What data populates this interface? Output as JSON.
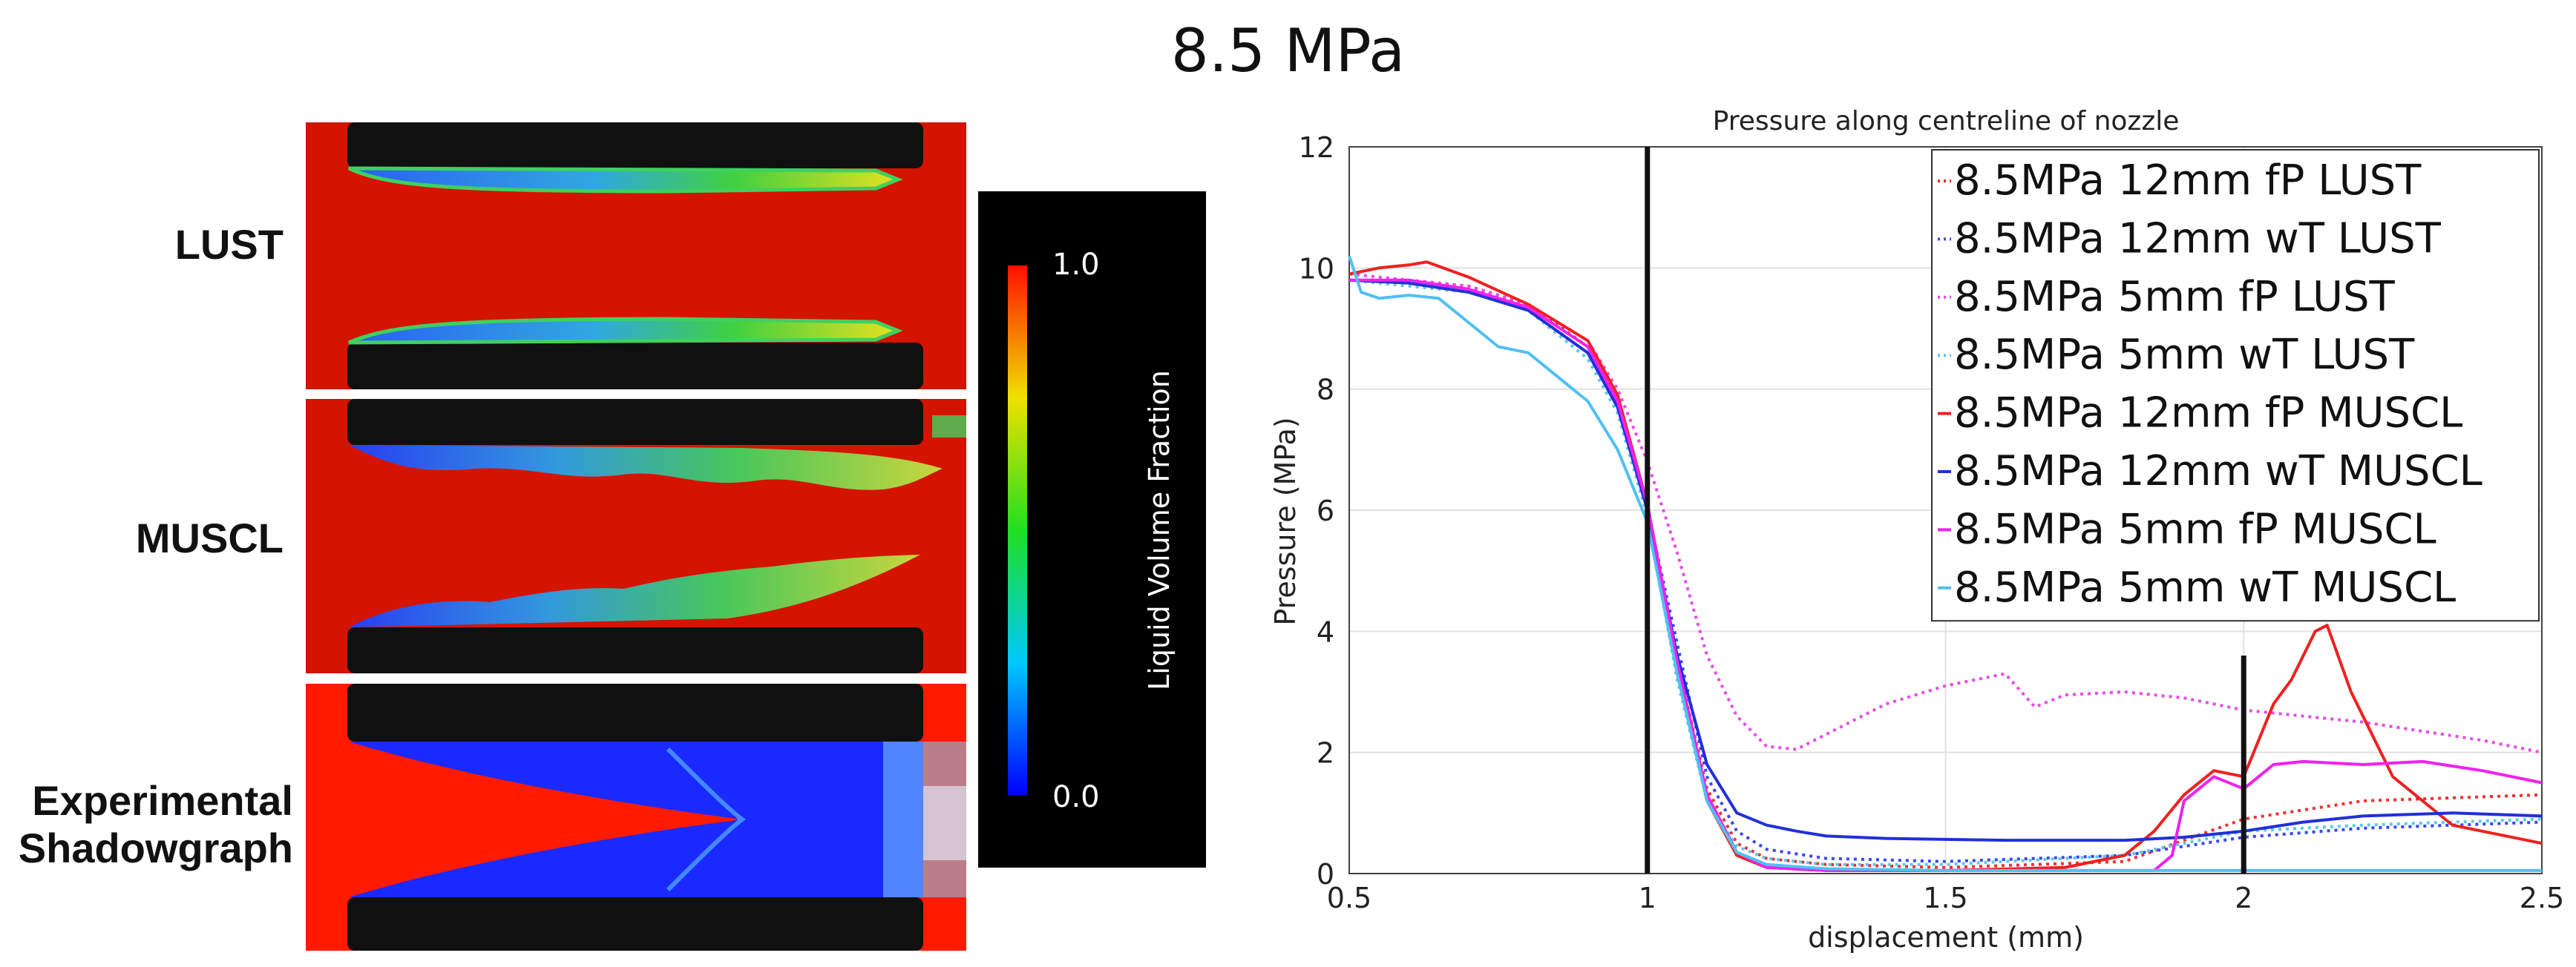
{
  "figure_title": "8.5 MPa",
  "panels": [
    {
      "label": "LUST"
    },
    {
      "label": "MUSCL"
    },
    {
      "label": "Experimental Shadowgraph",
      "lines": [
        "Experimental",
        "Shadowgraph"
      ]
    }
  ],
  "colorbar": {
    "label": "Liquid Volume Fraction",
    "max_label": "1.0",
    "min_label": "0.0"
  },
  "colors": {
    "red_field": "#d41400",
    "blue_field": "#1a2aff",
    "background": "#ffffff"
  },
  "chart_data": {
    "type": "line",
    "title": "Pressure along centreline of nozzle",
    "xlabel": "displacement (mm)",
    "ylabel": "Pressure (MPa)",
    "xlim": [
      0.5,
      2.5
    ],
    "ylim": [
      0,
      12
    ],
    "xticks": [
      "0.5",
      "1",
      "1.5",
      "2",
      "2.5"
    ],
    "yticks": [
      "0",
      "2",
      "4",
      "6",
      "8",
      "10",
      "12"
    ],
    "vlines": [
      1.0,
      2.0
    ],
    "series": [
      {
        "name": "8.5MPa 12mm fP LUST",
        "color": "#f03030",
        "dash": true,
        "x": [
          0.5,
          0.6,
          0.7,
          0.8,
          0.9,
          0.95,
          1.0,
          1.05,
          1.1,
          1.15,
          1.2,
          1.3,
          1.5,
          1.8,
          2.0,
          2.2,
          2.5
        ],
        "y": [
          9.8,
          9.8,
          9.7,
          9.4,
          8.7,
          7.8,
          6.0,
          3.5,
          1.4,
          0.5,
          0.25,
          0.15,
          0.1,
          0.2,
          0.9,
          1.2,
          1.3
        ]
      },
      {
        "name": "8.5MPa 12mm wT LUST",
        "color": "#3a48f0",
        "dash": true,
        "x": [
          0.5,
          0.6,
          0.7,
          0.8,
          0.9,
          0.95,
          1.0,
          1.05,
          1.1,
          1.15,
          1.2,
          1.3,
          1.5,
          1.8,
          2.0,
          2.2,
          2.5
        ],
        "y": [
          9.8,
          9.75,
          9.6,
          9.3,
          8.6,
          7.7,
          6.0,
          3.8,
          1.6,
          0.7,
          0.4,
          0.25,
          0.2,
          0.3,
          0.6,
          0.75,
          0.85
        ]
      },
      {
        "name": "8.5MPa 5mm fP LUST",
        "color": "#e84ce8",
        "dash": true,
        "x": [
          0.5,
          0.6,
          0.7,
          0.8,
          0.9,
          0.95,
          1.0,
          1.05,
          1.1,
          1.15,
          1.2,
          1.25,
          1.3,
          1.4,
          1.5,
          1.6,
          1.65,
          1.7,
          1.8,
          1.9,
          2.0,
          2.2,
          2.4,
          2.5
        ],
        "y": [
          9.9,
          9.8,
          9.7,
          9.4,
          8.8,
          8.0,
          6.8,
          5.3,
          3.6,
          2.6,
          2.1,
          2.05,
          2.3,
          2.8,
          3.1,
          3.3,
          2.75,
          2.95,
          3.0,
          2.9,
          2.7,
          2.5,
          2.2,
          2.0
        ]
      },
      {
        "name": "8.5MPa 5mm wT LUST",
        "color": "#5ac8f0",
        "dash": true,
        "x": [
          0.5,
          0.6,
          0.7,
          0.8,
          0.9,
          0.95,
          1.0,
          1.05,
          1.1,
          1.15,
          1.2,
          1.3,
          1.5,
          1.8,
          2.0,
          2.2,
          2.5
        ],
        "y": [
          9.8,
          9.7,
          9.6,
          9.3,
          8.5,
          7.6,
          5.9,
          3.2,
          1.2,
          0.45,
          0.25,
          0.15,
          0.15,
          0.3,
          0.7,
          0.8,
          0.9
        ]
      },
      {
        "name": "8.5MPa 12mm fP MUSCL",
        "color": "#f02020",
        "dash": false,
        "x": [
          0.5,
          0.55,
          0.6,
          0.63,
          0.7,
          0.8,
          0.9,
          0.95,
          1.0,
          1.05,
          1.1,
          1.15,
          1.2,
          1.3,
          1.5,
          1.7,
          1.8,
          1.85,
          1.9,
          1.95,
          2.0,
          2.05,
          2.08,
          2.12,
          2.14,
          2.18,
          2.25,
          2.35,
          2.5
        ],
        "y": [
          9.9,
          10.0,
          10.05,
          10.1,
          9.85,
          9.4,
          8.8,
          7.9,
          6.1,
          3.4,
          1.2,
          0.3,
          0.1,
          0.05,
          0.05,
          0.1,
          0.3,
          0.7,
          1.3,
          1.7,
          1.6,
          2.8,
          3.2,
          4.0,
          4.1,
          3.0,
          1.6,
          0.8,
          0.5
        ]
      },
      {
        "name": "8.5MPa 12mm wT MUSCL",
        "color": "#2030d8",
        "dash": false,
        "x": [
          0.5,
          0.6,
          0.7,
          0.8,
          0.9,
          0.95,
          1.0,
          1.05,
          1.1,
          1.15,
          1.2,
          1.25,
          1.3,
          1.4,
          1.6,
          1.8,
          1.9,
          2.0,
          2.1,
          2.2,
          2.35,
          2.5
        ],
        "y": [
          9.8,
          9.75,
          9.6,
          9.3,
          8.6,
          7.7,
          6.0,
          3.6,
          1.8,
          1.0,
          0.8,
          0.7,
          0.62,
          0.58,
          0.55,
          0.55,
          0.6,
          0.7,
          0.85,
          0.95,
          1.0,
          0.95
        ]
      },
      {
        "name": "8.5MPa 5mm fP MUSCL",
        "color": "#f020f0",
        "dash": false,
        "x": [
          0.5,
          0.6,
          0.7,
          0.8,
          0.9,
          0.95,
          1.0,
          1.05,
          1.1,
          1.15,
          1.2,
          1.3,
          1.5,
          1.7,
          1.85,
          1.88,
          1.9,
          1.95,
          2.0,
          2.05,
          2.1,
          2.2,
          2.3,
          2.4,
          2.5
        ],
        "y": [
          9.8,
          9.8,
          9.65,
          9.35,
          8.7,
          7.8,
          6.1,
          3.5,
          1.3,
          0.35,
          0.1,
          0.05,
          0.05,
          0.05,
          0.05,
          0.3,
          1.2,
          1.6,
          1.4,
          1.8,
          1.85,
          1.8,
          1.85,
          1.7,
          1.5
        ]
      },
      {
        "name": "8.5MPa 5mm wT MUSCL",
        "color": "#50c0f0",
        "dash": false,
        "x": [
          0.5,
          0.52,
          0.55,
          0.6,
          0.65,
          0.7,
          0.75,
          0.8,
          0.85,
          0.9,
          0.95,
          1.0,
          1.05,
          1.1,
          1.15,
          1.2,
          1.3,
          1.5,
          1.7,
          2.0,
          2.3,
          2.5
        ],
        "y": [
          10.2,
          9.6,
          9.5,
          9.55,
          9.5,
          9.1,
          8.7,
          8.6,
          8.2,
          7.8,
          7.0,
          5.8,
          3.3,
          1.2,
          0.35,
          0.15,
          0.08,
          0.05,
          0.05,
          0.05,
          0.05,
          0.05
        ]
      }
    ]
  }
}
